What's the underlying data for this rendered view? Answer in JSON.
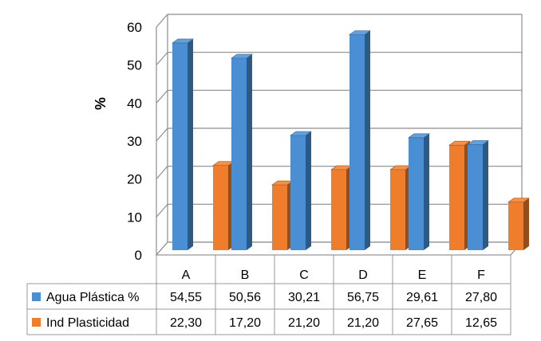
{
  "chart_data": {
    "type": "bar",
    "title": "",
    "ylabel": "%",
    "xlabel": "",
    "ylim": [
      0,
      60
    ],
    "yticks": [
      0,
      10,
      20,
      30,
      40,
      50,
      60
    ],
    "grid": true,
    "legend": "data-table-left",
    "categories": [
      "A",
      "B",
      "C",
      "D",
      "E",
      "F"
    ],
    "series": [
      {
        "name": "Agua Plástica %",
        "values": [
          54.55,
          50.56,
          30.21,
          56.75,
          29.61,
          27.8
        ],
        "labels": [
          "54,55",
          "50,56",
          "30,21",
          "56,75",
          "29,61",
          "27,80"
        ],
        "color": "#4a8fd4"
      },
      {
        "name": "Ind Plasticidad",
        "values": [
          22.3,
          17.2,
          21.2,
          21.2,
          27.65,
          12.65
        ],
        "labels": [
          "22,30",
          "17,20",
          "21,20",
          "21,20",
          "27,65",
          "12,65"
        ],
        "color": "#f07d2b"
      }
    ]
  }
}
